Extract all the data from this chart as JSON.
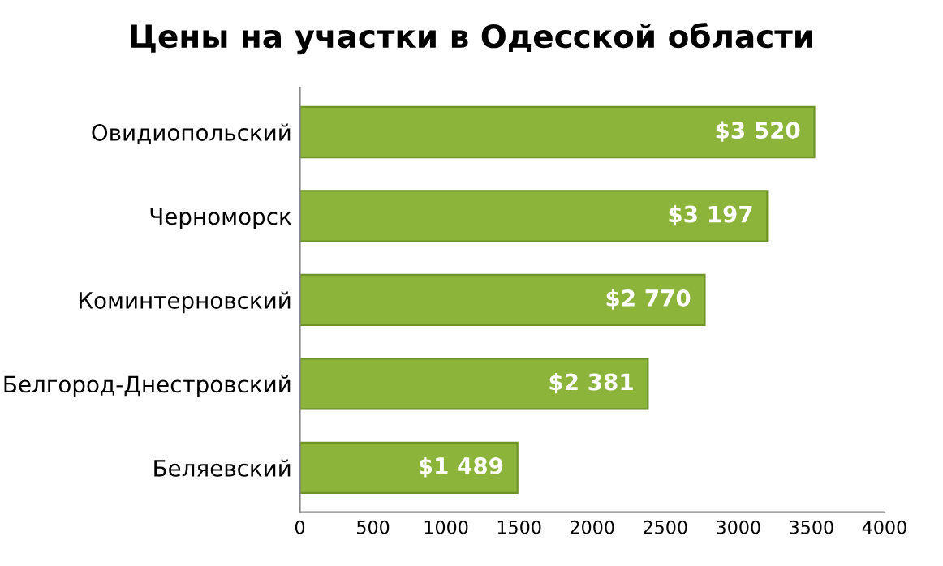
{
  "chart_data": {
    "type": "bar",
    "orientation": "horizontal",
    "title": "Цены на участки в Одесской области",
    "categories": [
      "Овидиопольский",
      "Черноморск",
      "Коминтерновский",
      "Белгород-Днестровский",
      "Беляевский"
    ],
    "values": [
      3520,
      3197,
      2770,
      2381,
      1489
    ],
    "value_labels": [
      "$3 520",
      "$3 197",
      "$2 770",
      "$2 381",
      "$1 489"
    ],
    "color": "#8cb43a",
    "xlim": [
      0,
      4000
    ],
    "xticks": [
      0,
      500,
      1000,
      1500,
      2000,
      2500,
      3000,
      3500,
      4000
    ],
    "grid": false
  }
}
